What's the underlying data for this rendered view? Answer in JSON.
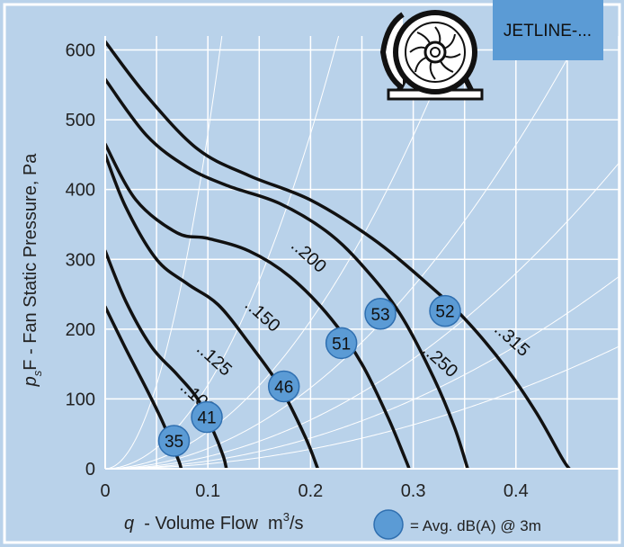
{
  "chart_data": {
    "type": "line",
    "title": "",
    "badge": "JETLINE-...",
    "xlabel": {
      "symbol": "q",
      "text": "  - Volume Flow  m",
      "sup": "3",
      "suffix": "/s"
    },
    "ylabel": {
      "symbol": "p",
      "sub": "s",
      "text": "F - Fan Static Pressure, Pa"
    },
    "xlim": [
      0,
      0.5
    ],
    "ylim": [
      0,
      620
    ],
    "x_ticks": [
      0,
      0.1,
      0.2,
      0.3,
      0.4
    ],
    "x_tick_labels": [
      "0",
      "0.1",
      "0.2",
      "0.3",
      "0.4"
    ],
    "y_ticks": [
      0,
      100,
      200,
      300,
      400,
      500,
      600
    ],
    "y_tick_labels": [
      "0",
      "100",
      "200",
      "300",
      "400",
      "500",
      "600"
    ],
    "grid": true,
    "colors": {
      "plot_bg": "#b9d2ea",
      "grid": "#ffffff",
      "curve": "#111111",
      "marker_fill": "#5b9bd5",
      "marker_stroke": "#2f6fb0",
      "badge_bg": "#5b9bd5"
    },
    "series": [
      {
        "name": ":100",
        "label_text": "..100",
        "points": [
          [
            0,
            232
          ],
          [
            0.02,
            172
          ],
          [
            0.04,
            115
          ],
          [
            0.055,
            70
          ],
          [
            0.065,
            35
          ],
          [
            0.072,
            10
          ],
          [
            0.074,
            0
          ]
        ]
      },
      {
        "name": ":125",
        "label_text": "..125",
        "points": [
          [
            0,
            312
          ],
          [
            0.02,
            240
          ],
          [
            0.045,
            175
          ],
          [
            0.07,
            135
          ],
          [
            0.09,
            100
          ],
          [
            0.105,
            55
          ],
          [
            0.115,
            18
          ],
          [
            0.118,
            0
          ]
        ]
      },
      {
        "name": ":150",
        "label_text": "..150",
        "points": [
          [
            0,
            450
          ],
          [
            0.02,
            375
          ],
          [
            0.05,
            300
          ],
          [
            0.08,
            265
          ],
          [
            0.11,
            235
          ],
          [
            0.14,
            180
          ],
          [
            0.17,
            118
          ],
          [
            0.195,
            45
          ],
          [
            0.207,
            0
          ]
        ]
      },
      {
        "name": ":200",
        "label_text": "..200",
        "points": [
          [
            0,
            465
          ],
          [
            0.03,
            385
          ],
          [
            0.07,
            338
          ],
          [
            0.1,
            330
          ],
          [
            0.14,
            312
          ],
          [
            0.18,
            275
          ],
          [
            0.22,
            215
          ],
          [
            0.25,
            150
          ],
          [
            0.275,
            75
          ],
          [
            0.292,
            15
          ],
          [
            0.296,
            0
          ]
        ]
      },
      {
        "name": ":250",
        "label_text": "..250",
        "points": [
          [
            0,
            558
          ],
          [
            0.04,
            478
          ],
          [
            0.08,
            432
          ],
          [
            0.12,
            405
          ],
          [
            0.17,
            380
          ],
          [
            0.22,
            335
          ],
          [
            0.26,
            275
          ],
          [
            0.29,
            215
          ],
          [
            0.32,
            130
          ],
          [
            0.34,
            60
          ],
          [
            0.353,
            0
          ]
        ]
      },
      {
        "name": ":315",
        "label_text": "..315",
        "points": [
          [
            0,
            612
          ],
          [
            0.04,
            535
          ],
          [
            0.09,
            458
          ],
          [
            0.14,
            420
          ],
          [
            0.2,
            385
          ],
          [
            0.26,
            330
          ],
          [
            0.31,
            270
          ],
          [
            0.35,
            215
          ],
          [
            0.39,
            145
          ],
          [
            0.42,
            80
          ],
          [
            0.445,
            15
          ],
          [
            0.452,
            0
          ]
        ]
      }
    ],
    "curve_labels": [
      {
        "text": "..100",
        "x": 0.072,
        "y": 115
      },
      {
        "text": "..125",
        "x": 0.088,
        "y": 170
      },
      {
        "text": "..150",
        "x": 0.135,
        "y": 233
      },
      {
        "text": "..200",
        "x": 0.18,
        "y": 318
      },
      {
        "text": "..250",
        "x": 0.308,
        "y": 168
      },
      {
        "text": "..315",
        "x": 0.378,
        "y": 198
      }
    ],
    "system_curves": [
      {
        "k": 48000
      },
      {
        "k": 12000
      },
      {
        "k": 5300
      },
      {
        "k": 2900
      },
      {
        "k": 1750
      },
      {
        "k": 1100
      },
      {
        "k": 700
      }
    ],
    "markers": [
      {
        "label": "35",
        "x": 0.067,
        "y": 40
      },
      {
        "label": "41",
        "x": 0.099,
        "y": 74
      },
      {
        "label": "46",
        "x": 0.174,
        "y": 118
      },
      {
        "label": "51",
        "x": 0.23,
        "y": 180
      },
      {
        "label": "53",
        "x": 0.268,
        "y": 222
      },
      {
        "label": "52",
        "x": 0.331,
        "y": 226
      }
    ],
    "legend": {
      "text": "= Avg. dB(A) @ 3m",
      "placement": "bottom-right"
    }
  }
}
